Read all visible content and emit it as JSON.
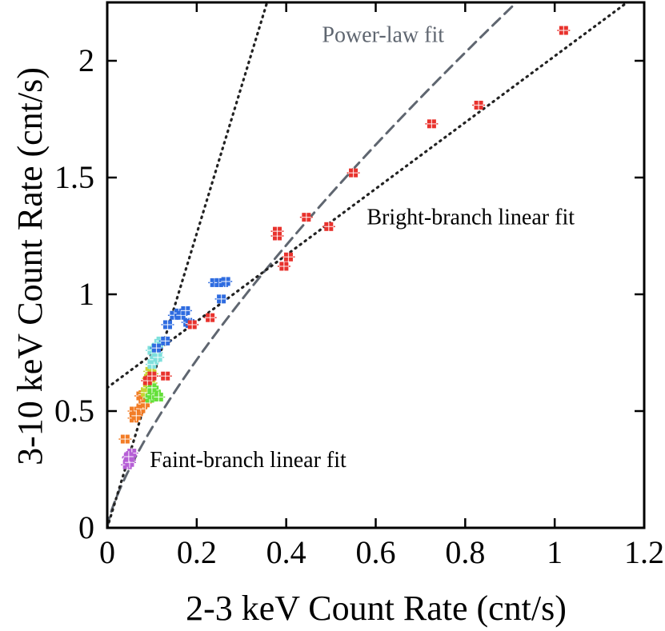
{
  "chart_data": {
    "type": "scatter",
    "title": "",
    "xlabel": "2-3 keV Count Rate (cnt/s)",
    "ylabel": "3-10 keV Count Rate (cnt/s)",
    "xlim": [
      0,
      1.2
    ],
    "ylim": [
      0,
      2.25
    ],
    "x_ticks": [
      0,
      0.2,
      0.4,
      0.6,
      0.8,
      1.0,
      1.2
    ],
    "x_tick_labels": [
      "0",
      "0.2",
      "0.4",
      "0.6",
      "0.8",
      "1",
      "1.2"
    ],
    "y_ticks": [
      0,
      0.5,
      1.0,
      1.5,
      2.0
    ],
    "y_tick_labels": [
      "0",
      "0.5",
      "1",
      "1.5",
      "2"
    ],
    "grid": false,
    "fits": [
      {
        "name": "Power-law fit",
        "style": "dashed",
        "color": "#5f6670",
        "kind": "power",
        "coef": 2.406,
        "exponent": 0.75
      },
      {
        "name": "Bright-branch linear fit",
        "style": "dotted",
        "color": "#222222",
        "kind": "linear",
        "intercept": 0.6,
        "slope": 1.42
      },
      {
        "name": "Faint-branch linear fit",
        "style": "dotted",
        "color": "#222222",
        "kind": "linear",
        "intercept": 0.0,
        "slope": 6.3
      }
    ],
    "annotations": [
      {
        "text": "Power-law fit",
        "x": 0.48,
        "y": 2.08,
        "color": "#5f6670"
      },
      {
        "text": "Bright-branch linear fit",
        "x": 0.58,
        "y": 1.3,
        "color": "#000000"
      },
      {
        "text": "Faint-branch linear fit",
        "x": 0.095,
        "y": 0.26,
        "color": "#000000"
      }
    ],
    "series": [
      {
        "name": "purple",
        "color": "#b65fd6",
        "points": [
          [
            0.045,
            0.27
          ],
          [
            0.05,
            0.29
          ],
          [
            0.047,
            0.3
          ],
          [
            0.052,
            0.31
          ],
          [
            0.055,
            0.32
          ],
          [
            0.05,
            0.28
          ],
          [
            0.048,
            0.305
          ]
        ]
      },
      {
        "name": "orange",
        "color": "#f27c26",
        "points": [
          [
            0.04,
            0.38
          ],
          [
            0.06,
            0.47
          ],
          [
            0.063,
            0.49
          ],
          [
            0.06,
            0.5
          ],
          [
            0.07,
            0.5
          ],
          [
            0.075,
            0.51
          ],
          [
            0.08,
            0.53
          ],
          [
            0.085,
            0.535
          ],
          [
            0.075,
            0.565
          ],
          [
            0.08,
            0.57
          ],
          [
            0.09,
            0.56
          ],
          [
            0.065,
            0.48
          ]
        ]
      },
      {
        "name": "yellow-green",
        "color": "#c8d435",
        "points": [
          [
            0.085,
            0.58
          ],
          [
            0.09,
            0.6
          ],
          [
            0.092,
            0.64
          ],
          [
            0.095,
            0.67
          ],
          [
            0.1,
            0.66
          ],
          [
            0.098,
            0.62
          ]
        ]
      },
      {
        "name": "green",
        "color": "#64e03a",
        "points": [
          [
            0.095,
            0.555
          ],
          [
            0.1,
            0.57
          ],
          [
            0.11,
            0.57
          ],
          [
            0.105,
            0.59
          ],
          [
            0.1,
            0.6
          ],
          [
            0.115,
            0.56
          ]
        ]
      },
      {
        "name": "cyan",
        "color": "#7fe0dc",
        "points": [
          [
            0.1,
            0.7
          ],
          [
            0.105,
            0.72
          ],
          [
            0.1,
            0.76
          ],
          [
            0.108,
            0.77
          ],
          [
            0.115,
            0.79
          ],
          [
            0.12,
            0.8
          ],
          [
            0.11,
            0.75
          ],
          [
            0.113,
            0.73
          ]
        ]
      },
      {
        "name": "blue",
        "color": "#2f6ce0",
        "points": [
          [
            0.13,
            0.8
          ],
          [
            0.135,
            0.87
          ],
          [
            0.15,
            0.91
          ],
          [
            0.16,
            0.92
          ],
          [
            0.165,
            0.91
          ],
          [
            0.175,
            0.93
          ],
          [
            0.18,
            0.88
          ],
          [
            0.185,
            0.875
          ],
          [
            0.24,
            1.05
          ],
          [
            0.25,
            1.05
          ],
          [
            0.26,
            1.05
          ],
          [
            0.265,
            1.055
          ],
          [
            0.255,
            0.98
          ],
          [
            0.11,
            0.77
          ]
        ]
      },
      {
        "name": "red",
        "color": "#e8322d",
        "points": [
          [
            0.09,
            0.63
          ],
          [
            0.1,
            0.65
          ],
          [
            0.13,
            0.65
          ],
          [
            0.19,
            0.87
          ],
          [
            0.23,
            0.9
          ],
          [
            0.38,
            1.25
          ],
          [
            0.38,
            1.27
          ],
          [
            0.395,
            1.12
          ],
          [
            0.405,
            1.16
          ],
          [
            0.445,
            1.33
          ],
          [
            0.495,
            1.29
          ],
          [
            0.55,
            1.52
          ],
          [
            0.725,
            1.73
          ],
          [
            0.83,
            1.81
          ],
          [
            1.02,
            2.13
          ]
        ]
      }
    ]
  }
}
